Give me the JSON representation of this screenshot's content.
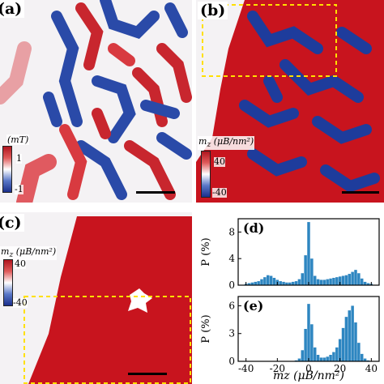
{
  "panels": {
    "a": {
      "label": "(a)",
      "unit": "(mT)",
      "cbar_max": "1",
      "cbar_min": "-1"
    },
    "b": {
      "label": "(b)",
      "unit": "m",
      "unit_sub": "z",
      "unit_rest": " (μB/nm²)",
      "cbar_max": "40",
      "cbar_min": "-40"
    },
    "c": {
      "label": "(c)",
      "unit": "m",
      "unit_sub": "z",
      "unit_rest": " (μB/nm²)",
      "cbar_max": "40",
      "cbar_min": "-40"
    },
    "d": {
      "label": "(d)",
      "ylabel": "P (%)"
    },
    "e": {
      "label": "(e)",
      "ylabel": "P (%)",
      "xlabel": "mz (μB/nm²)"
    }
  },
  "colors": {
    "red": "#c8141e",
    "blue": "#1e3c9c",
    "highlight": "#ffe000",
    "bar": "#2e86c1"
  },
  "chart_data": [
    {
      "type": "bar",
      "panel": "d",
      "x": [
        -40,
        -38,
        -36,
        -34,
        -32,
        -30,
        -28,
        -26,
        -24,
        -22,
        -20,
        -18,
        -16,
        -14,
        -12,
        -10,
        -8,
        -6,
        -4,
        -2,
        0,
        2,
        4,
        6,
        8,
        10,
        12,
        14,
        16,
        18,
        20,
        22,
        24,
        26,
        28,
        30,
        32,
        34,
        36,
        38,
        40
      ],
      "values": [
        0.2,
        0.3,
        0.4,
        0.5,
        0.6,
        0.9,
        1.2,
        1.5,
        1.4,
        1.1,
        0.8,
        0.6,
        0.5,
        0.4,
        0.4,
        0.5,
        0.6,
        0.9,
        1.8,
        4.5,
        9.5,
        4.0,
        1.4,
        0.9,
        0.8,
        0.8,
        0.9,
        1.0,
        1.1,
        1.2,
        1.3,
        1.4,
        1.5,
        1.7,
        2.0,
        2.3,
        1.8,
        1.0,
        0.5,
        0.3,
        0.2
      ],
      "xlim": [
        -45,
        45
      ],
      "ylim": [
        0,
        10
      ],
      "yticks": [
        0,
        4,
        8
      ]
    },
    {
      "type": "bar",
      "panel": "e",
      "x": [
        -40,
        -38,
        -36,
        -34,
        -32,
        -30,
        -28,
        -26,
        -24,
        -22,
        -20,
        -18,
        -16,
        -14,
        -12,
        -10,
        -8,
        -6,
        -4,
        -2,
        0,
        2,
        4,
        6,
        8,
        10,
        12,
        14,
        16,
        18,
        20,
        22,
        24,
        26,
        28,
        30,
        32,
        34,
        36,
        38,
        40
      ],
      "values": [
        0,
        0,
        0,
        0,
        0,
        0,
        0,
        0,
        0,
        0,
        0,
        0,
        0,
        0,
        0,
        0,
        0.1,
        0.3,
        1.2,
        3.5,
        6.2,
        4.0,
        1.5,
        0.7,
        0.4,
        0.4,
        0.5,
        0.7,
        1.0,
        1.5,
        2.4,
        3.6,
        4.8,
        5.5,
        6.0,
        4.2,
        2.0,
        0.8,
        0.3,
        0.1,
        0
      ],
      "xlim": [
        -45,
        45
      ],
      "ylim": [
        0,
        7
      ],
      "yticks": [
        0,
        3,
        6
      ],
      "xticks": [
        -40,
        -20,
        0,
        20,
        40
      ]
    }
  ]
}
